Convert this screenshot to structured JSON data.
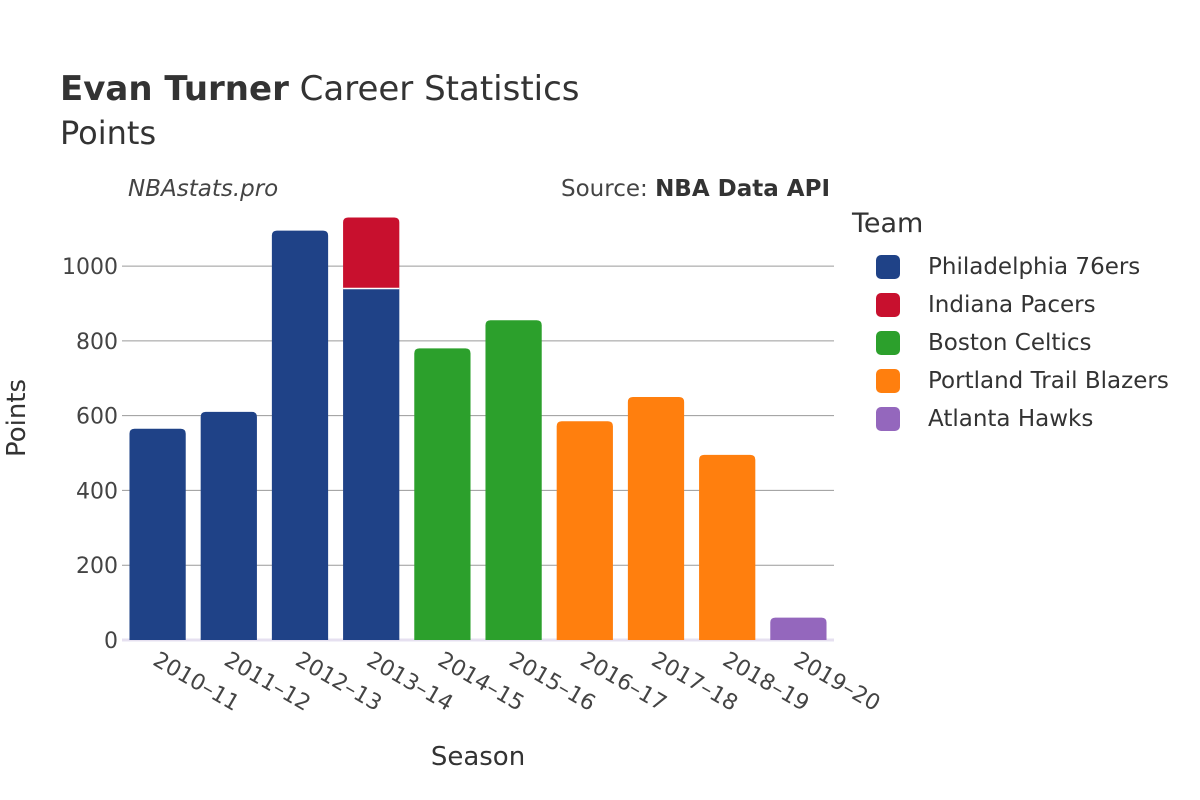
{
  "header": {
    "title_bold": "Evan Turner",
    "title_rest": " Career Statistics",
    "subtitle": "Points",
    "watermark": "NBAstats.pro",
    "source_prefix": "Source: ",
    "source_name": "NBA Data API"
  },
  "legend": {
    "title": "Team",
    "items": [
      {
        "label": "Philadelphia 76ers",
        "color": "#1f4287"
      },
      {
        "label": "Indiana Pacers",
        "color": "#c8102e"
      },
      {
        "label": "Boston Celtics",
        "color": "#2ca02c"
      },
      {
        "label": "Portland Trail Blazers",
        "color": "#ff7f0e"
      },
      {
        "label": "Atlanta Hawks",
        "color": "#9467bd"
      }
    ]
  },
  "chart_data": {
    "type": "bar",
    "stacked": true,
    "title": "Evan Turner Career Statistics",
    "subtitle": "Points",
    "xlabel": "Season",
    "ylabel": "Points",
    "ylim": [
      0,
      1150
    ],
    "yticks": [
      0,
      200,
      400,
      600,
      800,
      1000
    ],
    "grid": true,
    "legend_position": "right",
    "categories": [
      "2010–11",
      "2011–12",
      "2012–13",
      "2013–14",
      "2014–15",
      "2015–16",
      "2016–17",
      "2017–18",
      "2018–19",
      "2019–20"
    ],
    "series": [
      {
        "name": "Philadelphia 76ers",
        "color": "#1f4287",
        "values": [
          565,
          610,
          1095,
          940,
          0,
          0,
          0,
          0,
          0,
          0
        ]
      },
      {
        "name": "Indiana Pacers",
        "color": "#c8102e",
        "values": [
          0,
          0,
          0,
          190,
          0,
          0,
          0,
          0,
          0,
          0
        ]
      },
      {
        "name": "Boston Celtics",
        "color": "#2ca02c",
        "values": [
          0,
          0,
          0,
          0,
          780,
          855,
          0,
          0,
          0,
          0
        ]
      },
      {
        "name": "Portland Trail Blazers",
        "color": "#ff7f0e",
        "values": [
          0,
          0,
          0,
          0,
          0,
          0,
          585,
          650,
          495,
          0
        ]
      },
      {
        "name": "Atlanta Hawks",
        "color": "#9467bd",
        "values": [
          0,
          0,
          0,
          0,
          0,
          0,
          0,
          0,
          0,
          60
        ]
      }
    ]
  }
}
